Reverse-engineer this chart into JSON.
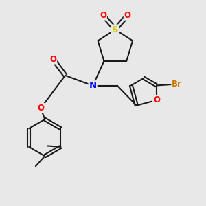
{
  "bg_color": "#e8e8e8",
  "bond_color": "#1a1a1a",
  "bond_width": 1.5,
  "atom_colors": {
    "S": "#cccc00",
    "O": "#ff0000",
    "N": "#0000ff",
    "Br": "#cc7700"
  },
  "font_size": 8.5,
  "fig_bg": "#e8e8e8"
}
